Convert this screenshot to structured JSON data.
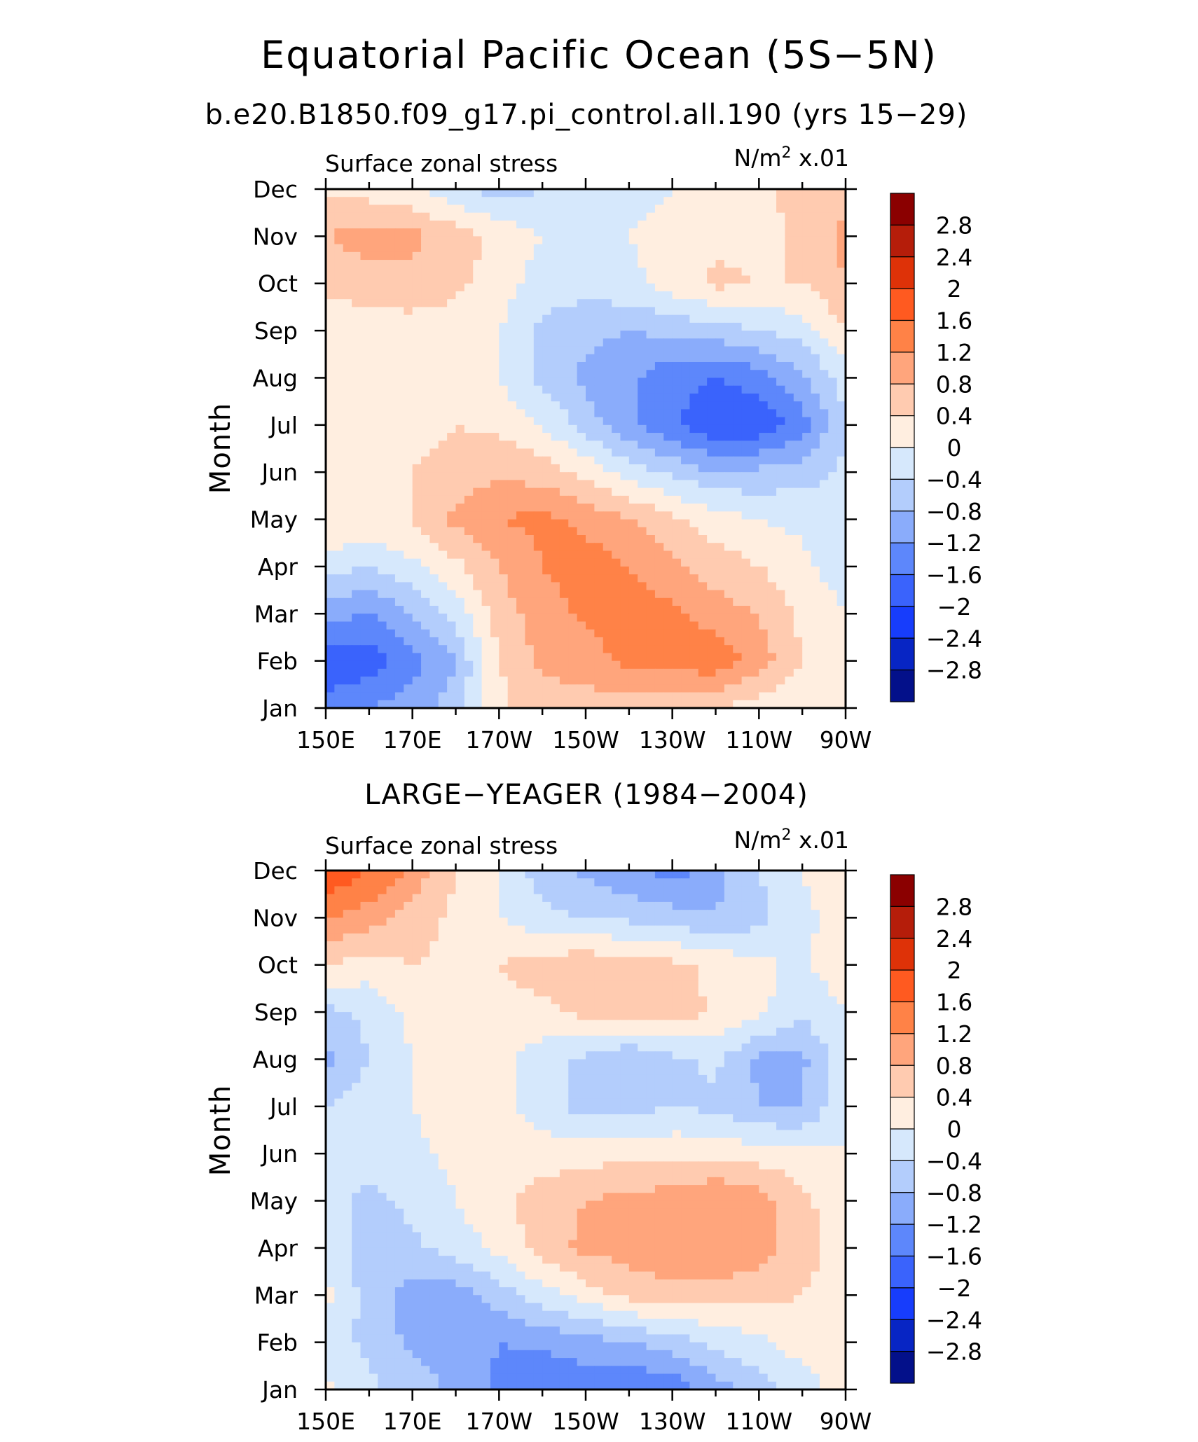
{
  "figure": {
    "title": "Equatorial Pacific Ocean (5S−5N)"
  },
  "chart_data": [
    {
      "type": "heatmap",
      "title": "b.e20.B1850.f09_g17.pi_control.all.190 (yrs 15−29)",
      "left_label": "Surface zonal stress",
      "right_label_main": "N/m",
      "right_label_sup": "2",
      "right_label_tail": " x.01",
      "ylabel": "Month",
      "x": [
        "150E",
        "170E",
        "170W",
        "150W",
        "130W",
        "110W",
        "90W"
      ],
      "y": [
        "Jan",
        "Feb",
        "Mar",
        "Apr",
        "May",
        "Jun",
        "Jul",
        "Aug",
        "Sep",
        "Oct",
        "Nov",
        "Dec"
      ],
      "xlim_deg_east": [
        150,
        270
      ],
      "z": [
        [
          -1.4,
          -1.2,
          -1.0,
          -0.6,
          0.3,
          0.6,
          0.6,
          0.6,
          0.4,
          0.4,
          0.2,
          0.1,
          0.0
        ],
        [
          -2.0,
          -1.8,
          -1.4,
          -0.8,
          0.4,
          0.9,
          1.0,
          1.3,
          1.4,
          1.5,
          1.0,
          0.4,
          0.0
        ],
        [
          -1.0,
          -1.2,
          -0.8,
          -0.2,
          0.6,
          1.0,
          1.3,
          1.4,
          1.3,
          1.0,
          0.8,
          0.3,
          0.0
        ],
        [
          -0.2,
          -0.4,
          -0.1,
          0.3,
          0.8,
          1.2,
          1.4,
          1.2,
          0.9,
          0.6,
          0.4,
          0.1,
          -0.2
        ],
        [
          0.4,
          0.4,
          0.4,
          0.9,
          1.2,
          1.3,
          1.1,
          0.8,
          0.5,
          0.2,
          0.0,
          -0.1,
          -0.2
        ],
        [
          0.2,
          0.3,
          0.4,
          0.6,
          0.7,
          0.6,
          0.3,
          -0.2,
          -0.5,
          -0.8,
          -0.7,
          -0.6,
          -0.3
        ],
        [
          0.1,
          0.1,
          0.2,
          0.4,
          0.3,
          0.0,
          -0.6,
          -1.1,
          -1.5,
          -2.0,
          -1.9,
          -1.4,
          -0.4
        ],
        [
          0.0,
          0.1,
          0.2,
          0.3,
          0.0,
          -0.5,
          -0.9,
          -1.1,
          -1.5,
          -1.6,
          -1.4,
          -0.9,
          -0.2
        ],
        [
          0.1,
          0.2,
          0.2,
          0.2,
          0.0,
          -0.5,
          -0.7,
          -0.8,
          -0.7,
          -0.6,
          -0.4,
          -0.2,
          0.4
        ],
        [
          0.5,
          0.6,
          0.7,
          0.5,
          0.2,
          -0.2,
          -0.2,
          -0.1,
          0.2,
          0.5,
          0.4,
          0.4,
          0.8
        ],
        [
          0.8,
          1.0,
          0.9,
          0.6,
          0.3,
          0.0,
          -0.2,
          0.0,
          0.1,
          0.3,
          0.2,
          0.5,
          0.9
        ],
        [
          0.3,
          0.2,
          0.1,
          -0.3,
          -0.6,
          -0.4,
          -0.2,
          -0.1,
          0.0,
          0.2,
          0.3,
          0.6,
          0.7
        ]
      ]
    },
    {
      "type": "heatmap",
      "title": "LARGE−YEAGER (1984−2004)",
      "left_label": "Surface zonal stress",
      "right_label_main": "N/m",
      "right_label_sup": "2",
      "right_label_tail": " x.01",
      "ylabel": "Month",
      "x": [
        "150E",
        "170E",
        "170W",
        "150W",
        "130W",
        "110W",
        "90W"
      ],
      "y": [
        "Jan",
        "Feb",
        "Mar",
        "Apr",
        "May",
        "Jun",
        "Jul",
        "Aug",
        "Sep",
        "Oct",
        "Nov",
        "Dec"
      ],
      "xlim_deg_east": [
        150,
        270
      ],
      "z": [
        [
          0.1,
          -0.3,
          -0.6,
          -0.9,
          -1.3,
          -1.6,
          -1.4,
          -1.6,
          -1.5,
          -1.0,
          -0.6,
          -0.2,
          0.2
        ],
        [
          -0.2,
          -0.5,
          -0.9,
          -1.0,
          -1.2,
          -1.1,
          -1.0,
          -0.8,
          -0.6,
          -0.3,
          -0.1,
          0.2,
          0.1
        ],
        [
          0.1,
          -0.6,
          -1.0,
          -1.0,
          -0.6,
          -0.2,
          0.2,
          0.5,
          0.6,
          0.6,
          0.5,
          0.4,
          0.1
        ],
        [
          -0.2,
          -0.6,
          -0.5,
          -0.2,
          0.1,
          0.6,
          0.9,
          1.0,
          1.2,
          1.2,
          1.0,
          0.6,
          0.2
        ],
        [
          -0.2,
          -0.5,
          -0.3,
          0.0,
          0.3,
          0.6,
          0.8,
          0.9,
          1.0,
          1.2,
          1.0,
          0.5,
          0.1
        ],
        [
          -0.3,
          -0.3,
          -0.1,
          0.1,
          0.2,
          0.2,
          0.2,
          0.3,
          0.3,
          0.3,
          0.2,
          0.1,
          0.0
        ],
        [
          -0.4,
          -0.2,
          0.0,
          0.2,
          0.1,
          -0.2,
          -0.6,
          -0.6,
          -0.4,
          -0.5,
          -0.8,
          -0.8,
          0.0
        ],
        [
          -0.9,
          -0.4,
          0.0,
          0.2,
          0.1,
          -0.2,
          -0.5,
          -0.8,
          -0.5,
          -0.3,
          -0.9,
          -0.9,
          -0.1
        ],
        [
          -0.5,
          -0.3,
          0.1,
          0.3,
          0.3,
          0.3,
          0.5,
          0.6,
          0.7,
          0.3,
          0.1,
          -0.3,
          0.0
        ],
        [
          0.4,
          0.2,
          0.4,
          0.3,
          0.4,
          0.6,
          0.7,
          0.6,
          0.5,
          0.3,
          0.1,
          -0.1,
          0.3
        ],
        [
          1.3,
          1.0,
          0.6,
          0.3,
          0.0,
          -0.3,
          -0.4,
          -0.5,
          -0.6,
          -0.8,
          -0.5,
          -0.1,
          0.2
        ],
        [
          1.9,
          1.6,
          1.1,
          0.4,
          0.0,
          -0.6,
          -0.9,
          -1.1,
          -1.4,
          -0.9,
          -0.4,
          0.0,
          0.3
        ]
      ]
    }
  ],
  "colorbar": {
    "tick_labels": [
      "2.8",
      "2.4",
      "2",
      "1.6",
      "1.2",
      "0.8",
      "0.4",
      "0",
      "−0.4",
      "−0.8",
      "−1.2",
      "−1.6",
      "−2",
      "−2.4",
      "−2.8"
    ],
    "levels": [
      2.8,
      2.4,
      2.0,
      1.6,
      1.2,
      0.8,
      0.4,
      0.0,
      -0.4,
      -0.8,
      -1.2,
      -1.6,
      -2.0,
      -2.4,
      -2.8
    ],
    "colors_top_to_bottom": [
      "#8b0000",
      "#b51d0a",
      "#de3208",
      "#ff5a20",
      "#ff8247",
      "#ffa57c",
      "#ffcbb0",
      "#ffeee0",
      "#d6e8fc",
      "#b3cdfc",
      "#8aacfb",
      "#5d87fb",
      "#3a63fc",
      "#173dfc",
      "#0725c4",
      "#03108a"
    ]
  }
}
